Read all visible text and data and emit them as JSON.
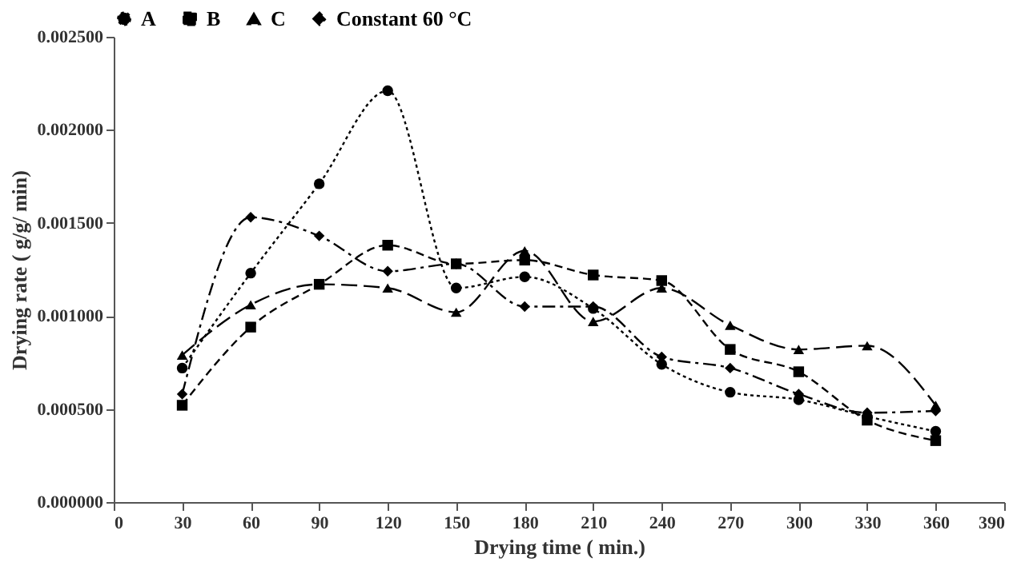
{
  "chart_data": {
    "type": "line",
    "xlabel": "Drying time ( min.)",
    "ylabel": "Drying rate ( g/g/ min)",
    "x": [
      30,
      60,
      90,
      120,
      150,
      180,
      210,
      240,
      270,
      300,
      330,
      360
    ],
    "xlim": [
      0,
      390
    ],
    "xticks": [
      0,
      30,
      60,
      90,
      120,
      150,
      180,
      210,
      240,
      270,
      300,
      330,
      360,
      390
    ],
    "ylim": [
      0,
      0.0025
    ],
    "yticks": [
      {
        "value": 0,
        "label": "0.000000"
      },
      {
        "value": 0.0005,
        "label": "0.000500"
      },
      {
        "value": 0.001,
        "label": "0.001000"
      },
      {
        "value": 0.0015,
        "label": "0.001500"
      },
      {
        "value": 0.002,
        "label": "0.002000"
      },
      {
        "value": 0.0025,
        "label": "0.002500"
      }
    ],
    "grid": false,
    "legend": "top",
    "series": [
      {
        "name": "A",
        "color": "#000000",
        "marker": "circle",
        "line_style": "dotted",
        "values": [
          0.00072,
          0.00123,
          0.00171,
          0.00221,
          0.00115,
          0.00121,
          0.00104,
          0.00074,
          0.00059,
          0.00055,
          0.00046,
          0.00038
        ]
      },
      {
        "name": "B",
        "color": "#000000",
        "marker": "square",
        "line_style": "dashed",
        "values": [
          0.00052,
          0.00094,
          0.00117,
          0.00138,
          0.00128,
          0.0013,
          0.00122,
          0.00119,
          0.00082,
          0.0007,
          0.00044,
          0.00033
        ]
      },
      {
        "name": "C",
        "color": "#000000",
        "marker": "triangle",
        "line_style": "longdash",
        "values": [
          0.00079,
          0.00106,
          0.00117,
          0.00115,
          0.00102,
          0.00135,
          0.00097,
          0.00115,
          0.00095,
          0.00082,
          0.00084,
          0.00052
        ]
      },
      {
        "name": "Constant 60 °C",
        "color": "#000000",
        "marker": "diamond",
        "line_style": "dashdot",
        "values": [
          0.00058,
          0.00153,
          0.00143,
          0.00124,
          0.00128,
          0.00105,
          0.00105,
          0.00078,
          0.00072,
          0.00058,
          0.00048,
          0.00049
        ]
      }
    ]
  }
}
